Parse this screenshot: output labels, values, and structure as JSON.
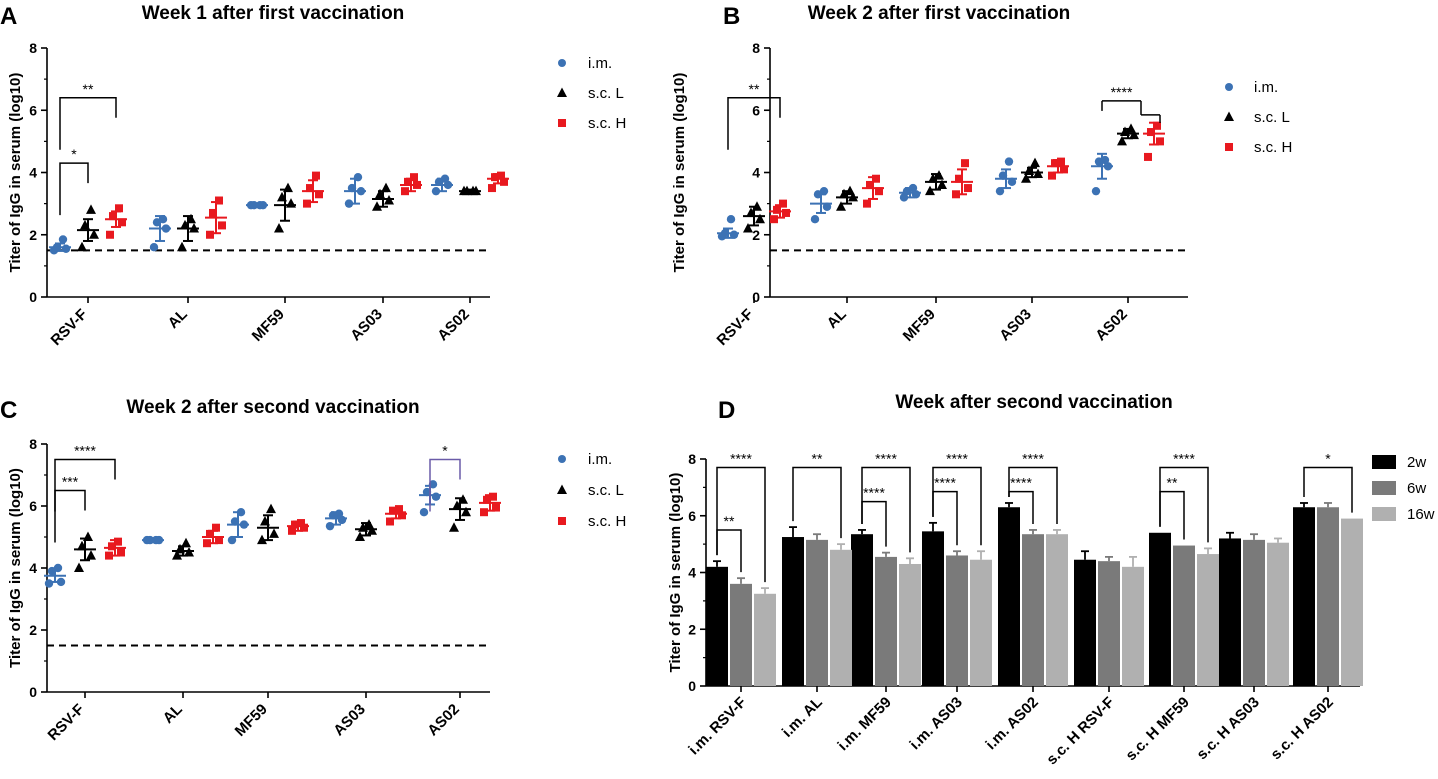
{
  "chart_data": [
    {
      "panel": "A",
      "type": "scatter",
      "title": "Week 1 after first vaccination",
      "ylabel": "Titer of IgG in serum (log10)",
      "xlabel": "",
      "ylim": [
        0,
        8
      ],
      "yticks": [
        "0",
        "2",
        "4",
        "6",
        "8"
      ],
      "categories": [
        "RSV-F",
        "AL",
        "MF59",
        "AS03",
        "AS02"
      ],
      "reference_line": 1.5,
      "legend": [
        "i.m.",
        "s.c. L",
        "s.c. H"
      ],
      "series": [
        {
          "name": "i.m.",
          "color": "#3c72b4",
          "marker": "circle",
          "mean": [
            1.6,
            2.2,
            2.95,
            3.4,
            3.6
          ],
          "sd": [
            0.12,
            0.4,
            0.05,
            0.4,
            0.2
          ],
          "points": [
            [
              1.5,
              1.55,
              1.6,
              1.85
            ],
            [
              1.6,
              2.2,
              2.4,
              2.5
            ],
            [
              2.95,
              2.95,
              2.95,
              2.95
            ],
            [
              3.0,
              3.4,
              3.5,
              3.85
            ],
            [
              3.4,
              3.6,
              3.7,
              3.8
            ]
          ]
        },
        {
          "name": "s.c. L",
          "color": "#000000",
          "marker": "triangle",
          "mean": [
            2.15,
            2.2,
            2.95,
            3.15,
            3.4
          ],
          "sd": [
            0.35,
            0.4,
            0.5,
            0.25,
            0.05
          ],
          "points": [
            [
              1.6,
              2.0,
              2.3,
              2.8
            ],
            [
              1.6,
              2.2,
              2.3,
              2.5
            ],
            [
              2.2,
              3.0,
              3.2,
              3.5
            ],
            [
              2.9,
              3.1,
              3.3,
              3.5
            ],
            [
              3.4,
              3.4,
              3.4,
              3.4
            ]
          ]
        },
        {
          "name": "s.c. H",
          "color": "#e8191f",
          "marker": "square",
          "mean": [
            2.5,
            2.55,
            3.4,
            3.6,
            3.8
          ],
          "sd": [
            0.25,
            0.5,
            0.35,
            0.2,
            0.15
          ],
          "points": [
            [
              2.0,
              2.4,
              2.6,
              2.85
            ],
            [
              2.0,
              2.3,
              2.7,
              3.1
            ],
            [
              3.0,
              3.3,
              3.5,
              3.9
            ],
            [
              3.4,
              3.6,
              3.7,
              3.85
            ],
            [
              3.5,
              3.7,
              3.85,
              3.9
            ]
          ]
        }
      ],
      "significance": [
        {
          "label": "*",
          "group": 0,
          "from": 0,
          "to": 1,
          "y": 4.3
        },
        {
          "label": "**",
          "group": 0,
          "from": 0,
          "to": 2,
          "y": 6.4
        }
      ]
    },
    {
      "panel": "B",
      "type": "scatter",
      "title": "Week 2 after first vaccination",
      "ylabel": "Titer of IgG in serum (log10)",
      "xlabel": "",
      "ylim": [
        0,
        8
      ],
      "yticks": [
        "0",
        "2",
        "4",
        "6",
        "8"
      ],
      "categories": [
        "RSV-F",
        "AL",
        "MF59",
        "AS03",
        "AS02"
      ],
      "reference_line": 1.5,
      "legend": [
        "i.m.",
        "s.c. L",
        "s.c. H"
      ],
      "series": [
        {
          "name": "i.m.",
          "color": "#3c72b4",
          "marker": "circle",
          "mean": [
            2.05,
            3.0,
            3.35,
            3.8,
            4.2
          ],
          "sd": [
            0.15,
            0.3,
            0.15,
            0.3,
            0.4
          ],
          "points": [
            [
              1.95,
              2.0,
              2.05,
              2.5
            ],
            [
              2.5,
              2.9,
              3.3,
              3.4
            ],
            [
              3.2,
              3.3,
              3.4,
              3.5
            ],
            [
              3.4,
              3.7,
              3.9,
              4.35
            ],
            [
              3.4,
              4.2,
              4.35,
              4.4
            ]
          ]
        },
        {
          "name": "s.c. L",
          "color": "#000000",
          "marker": "triangle",
          "mean": [
            2.6,
            3.2,
            3.7,
            4.0,
            5.25
          ],
          "sd": [
            0.3,
            0.2,
            0.25,
            0.15,
            0.15
          ],
          "points": [
            [
              2.2,
              2.5,
              2.7,
              2.9
            ],
            [
              2.9,
              3.2,
              3.3,
              3.4
            ],
            [
              3.4,
              3.6,
              3.8,
              3.9
            ],
            [
              3.8,
              3.95,
              4.05,
              4.3
            ],
            [
              5.0,
              5.2,
              5.3,
              5.4
            ]
          ]
        },
        {
          "name": "s.c. H",
          "color": "#e8191f",
          "marker": "square",
          "mean": [
            2.75,
            3.5,
            3.7,
            4.2,
            5.25
          ],
          "sd": [
            0.2,
            0.35,
            0.4,
            0.2,
            0.35
          ],
          "points": [
            [
              2.5,
              2.7,
              2.8,
              3.0
            ],
            [
              3.0,
              3.4,
              3.6,
              3.8
            ],
            [
              3.3,
              3.5,
              3.8,
              4.3
            ],
            [
              3.9,
              4.1,
              4.3,
              4.35
            ],
            [
              4.5,
              5.0,
              5.3,
              5.5
            ]
          ]
        }
      ],
      "significance": [
        {
          "label": "**",
          "group": 0,
          "from": 0,
          "to": 2,
          "y": 6.4
        },
        {
          "label": "****",
          "group": 4,
          "from": 0,
          "to": [
            1,
            2
          ],
          "y": 6.3
        }
      ]
    },
    {
      "panel": "C",
      "type": "scatter",
      "title": "Week 2 after second vaccination",
      "ylabel": "Titer of IgG in serum (log10)",
      "xlabel": "",
      "ylim": [
        0,
        8
      ],
      "yticks": [
        "0",
        "2",
        "4",
        "6",
        "8"
      ],
      "categories": [
        "RSV-F",
        "AL",
        "MF59",
        "AS03",
        "AS02"
      ],
      "reference_line": 1.5,
      "legend": [
        "i.m.",
        "s.c. L",
        "s.c. H"
      ],
      "series": [
        {
          "name": "i.m.",
          "color": "#3c72b4",
          "marker": "circle",
          "mean": [
            3.75,
            4.9,
            5.4,
            5.6,
            6.35
          ],
          "sd": [
            0.2,
            0.05,
            0.4,
            0.2,
            0.3
          ],
          "points": [
            [
              3.5,
              3.55,
              3.9,
              4.0
            ],
            [
              4.9,
              4.9,
              4.9,
              4.9
            ],
            [
              4.9,
              5.4,
              5.5,
              5.8
            ],
            [
              5.35,
              5.55,
              5.7,
              5.75
            ],
            [
              5.8,
              6.3,
              6.45,
              6.7
            ]
          ]
        },
        {
          "name": "s.c. L",
          "color": "#000000",
          "marker": "triangle",
          "mean": [
            4.6,
            4.55,
            5.3,
            5.25,
            5.9
          ],
          "sd": [
            0.35,
            0.15,
            0.4,
            0.2,
            0.35
          ],
          "points": [
            [
              4.0,
              4.4,
              4.7,
              5.0
            ],
            [
              4.4,
              4.5,
              4.6,
              4.8
            ],
            [
              4.9,
              5.1,
              5.5,
              5.9
            ],
            [
              5.0,
              5.2,
              5.3,
              5.4
            ],
            [
              5.3,
              5.8,
              6.0,
              6.2
            ]
          ]
        },
        {
          "name": "s.c. H",
          "color": "#e8191f",
          "marker": "square",
          "mean": [
            4.65,
            5.0,
            5.35,
            5.75,
            6.1
          ],
          "sd": [
            0.25,
            0.2,
            0.15,
            0.15,
            0.25
          ],
          "points": [
            [
              4.4,
              4.5,
              4.7,
              4.85
            ],
            [
              4.8,
              4.9,
              5.1,
              5.3
            ],
            [
              5.2,
              5.3,
              5.4,
              5.45
            ],
            [
              5.5,
              5.7,
              5.85,
              5.9
            ],
            [
              5.8,
              5.95,
              6.2,
              6.3
            ]
          ]
        }
      ],
      "significance": [
        {
          "label": "***",
          "group": 0,
          "from": 0,
          "to": 1,
          "y": 6.5
        },
        {
          "label": "****",
          "group": 0,
          "from": 0,
          "to": 2,
          "y": 7.5
        },
        {
          "label": "*",
          "group": 4,
          "from": 0,
          "to": 1,
          "y": 7.5,
          "color": "#6a5ba8"
        }
      ]
    },
    {
      "panel": "D",
      "type": "bar",
      "title": "Week after second vaccination",
      "ylabel": "Titer of IgG in serum (log10)",
      "xlabel": "",
      "ylim": [
        0,
        8
      ],
      "yticks": [
        "0",
        "2",
        "4",
        "6",
        "8"
      ],
      "categories": [
        "i.m. RSV-F",
        "i.m. AL",
        "i.m. MF59",
        "i.m. AS03",
        "i.m. AS02",
        "s.c. H RSV-F",
        "s.c. H MF59",
        "s.c. H AS03",
        "s.c. H AS02"
      ],
      "legend": [
        "2w",
        "6w",
        "16w"
      ],
      "series": [
        {
          "name": "2w",
          "color": "#000000",
          "values": [
            4.2,
            5.25,
            5.35,
            5.45,
            6.3,
            4.45,
            5.4,
            5.2,
            6.3
          ],
          "err": [
            0.2,
            0.35,
            0.15,
            0.3,
            0.15,
            0.3,
            0.0,
            0.2,
            0.15
          ]
        },
        {
          "name": "6w",
          "color": "#7a7a7a",
          "values": [
            3.6,
            5.15,
            4.55,
            4.6,
            5.35,
            4.4,
            4.95,
            5.15,
            6.3
          ],
          "err": [
            0.2,
            0.2,
            0.15,
            0.15,
            0.15,
            0.15,
            0.0,
            0.2,
            0.15
          ]
        },
        {
          "name": "16w",
          "color": "#b0b0b0",
          "values": [
            3.25,
            4.8,
            4.3,
            4.45,
            5.35,
            4.2,
            4.65,
            5.05,
            5.9
          ],
          "err": [
            0.2,
            0.2,
            0.2,
            0.3,
            0.15,
            0.35,
            0.2,
            0.15,
            0.0
          ]
        }
      ],
      "significance": [
        {
          "label": "**",
          "group": 0,
          "from": 0,
          "to": 1,
          "y": 5.5
        },
        {
          "label": "****",
          "group": 0,
          "from": 0,
          "to": 2,
          "y": 7.7
        },
        {
          "label": "**",
          "group": 1,
          "from": 0,
          "to": 2,
          "y": 7.7
        },
        {
          "label": "****",
          "group": 2,
          "from": 0,
          "to": 1,
          "y": 6.5
        },
        {
          "label": "****",
          "group": 2,
          "from": 0,
          "to": 2,
          "y": 7.7
        },
        {
          "label": "****",
          "group": 3,
          "from": 0,
          "to": 1,
          "y": 6.85
        },
        {
          "label": "****",
          "group": 3,
          "from": 0,
          "to": 2,
          "y": 7.7
        },
        {
          "label": "****",
          "group": 4,
          "from": 0,
          "to": 1,
          "y": 6.85
        },
        {
          "label": "****",
          "group": 4,
          "from": 0,
          "to": 2,
          "y": 7.7
        },
        {
          "label": "**",
          "group": 6,
          "from": 0,
          "to": 1,
          "y": 6.85
        },
        {
          "label": "****",
          "group": 6,
          "from": 0,
          "to": 2,
          "y": 7.7
        },
        {
          "label": "*",
          "group": 8,
          "from": 0,
          "to": 2,
          "y": 7.7
        }
      ]
    }
  ]
}
